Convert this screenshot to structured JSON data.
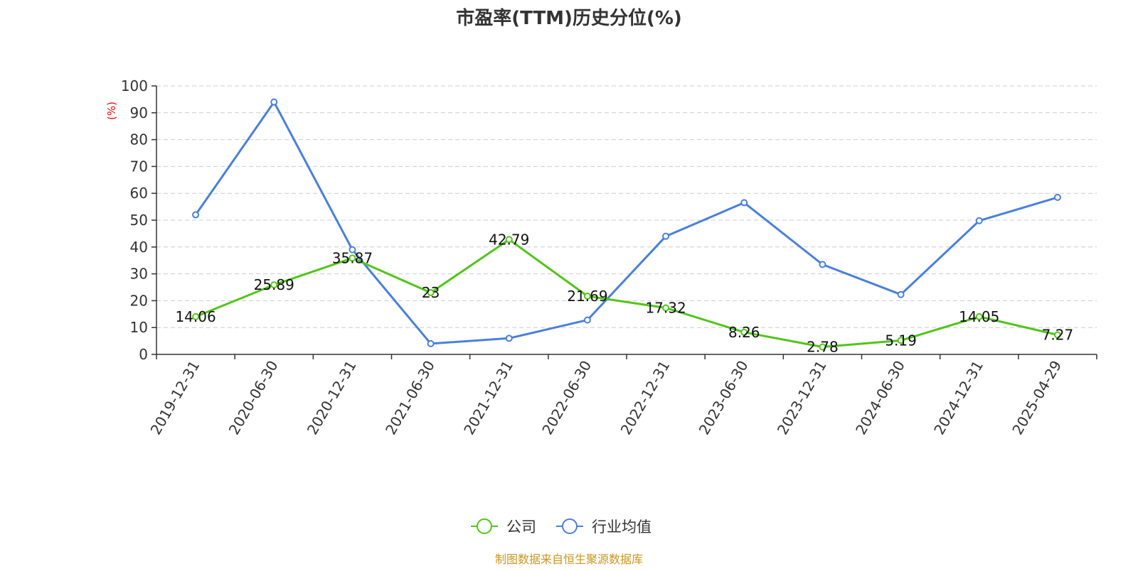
{
  "chart_data": {
    "type": "line",
    "title": "市盈率(TTM)历史分位(%)",
    "ylabel": "(%)",
    "ylim": [
      0,
      100
    ],
    "yticks": [
      0,
      10,
      20,
      30,
      40,
      50,
      60,
      70,
      80,
      90,
      100
    ],
    "grid": true,
    "legend_position": "bottom-center",
    "categories": [
      "2019-12-31",
      "2020-06-30",
      "2020-12-31",
      "2021-06-30",
      "2021-12-31",
      "2022-06-30",
      "2022-12-31",
      "2023-06-30",
      "2023-12-31",
      "2024-06-30",
      "2024-12-31",
      "2025-04-29"
    ],
    "series": [
      {
        "name": "公司",
        "color": "#52c41a",
        "values": [
          14.06,
          25.89,
          35.87,
          23,
          42.79,
          21.69,
          17.32,
          8.26,
          2.78,
          5.19,
          14.05,
          7.27
        ],
        "labels": [
          "14.06",
          "25.89",
          "35.87",
          "23",
          "42.79",
          "21.69",
          "17.32",
          "8.26",
          "2.78",
          "5.19",
          "14.05",
          "7.27"
        ]
      },
      {
        "name": "行业均值",
        "color": "#4a7fdc",
        "values": [
          52,
          94,
          39,
          4,
          6,
          12.8,
          44,
          56.5,
          33.5,
          22.3,
          49.8,
          58.5
        ]
      }
    ]
  },
  "source": "制图数据来自恒生聚源数据库",
  "source_color": "#c8961e"
}
